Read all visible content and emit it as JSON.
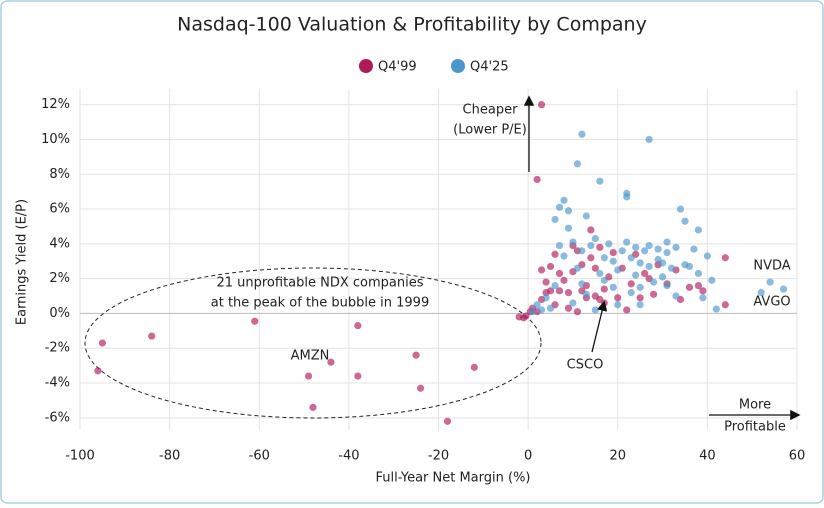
{
  "chart_data": {
    "type": "scatter",
    "title": "Nasdaq-100 Valuation & Profitability by Company",
    "x_label": "Full-Year Net Margin (%)",
    "y_label": "Earnings Yield (E/P)",
    "xlim": [
      -100,
      60
    ],
    "ylim": [
      -6.7,
      12.9
    ],
    "xticks": [
      -100,
      -80,
      -60,
      -40,
      -20,
      0,
      20,
      40,
      60
    ],
    "yticks": [
      {
        "value": -6,
        "label": "-6%"
      },
      {
        "value": -4,
        "label": "-4%"
      },
      {
        "value": -2,
        "label": "-2%"
      },
      {
        "value": 0,
        "label": "0%"
      },
      {
        "value": 2,
        "label": "2%"
      },
      {
        "value": 4,
        "label": "4%"
      },
      {
        "value": 6,
        "label": "6%"
      },
      {
        "value": 8,
        "label": "8%"
      },
      {
        "value": 10,
        "label": "10%"
      },
      {
        "value": 12,
        "label": "12%"
      }
    ],
    "grid": true,
    "annotations": [
      "Cheaper",
      "(Lower P/E)",
      "More",
      "Profitable",
      "21 unprofitable NDX companies",
      "at the peak of the bubble in 1999",
      "AMZN",
      "CSCO",
      "NVDA",
      "AVGO"
    ],
    "series": [
      {
        "name": "Q4'99",
        "color": "#b0185a",
        "x": [
          -96,
          -95,
          -84,
          -61,
          -49,
          -48,
          -44,
          -38,
          -38,
          -25,
          -24,
          -18,
          -12,
          -2,
          -1,
          -0.5,
          0.5,
          1,
          2,
          3,
          4,
          5,
          5,
          6,
          6,
          7,
          7,
          8,
          9,
          9,
          10,
          10,
          11,
          12,
          12,
          13,
          13,
          14,
          14,
          15,
          15,
          16,
          16,
          17,
          17,
          18,
          19,
          20,
          21,
          22,
          23,
          24,
          25,
          26,
          27,
          28,
          29,
          31,
          33,
          34,
          36,
          38,
          39,
          44,
          44,
          2,
          3,
          3,
          11,
          4
        ],
        "values": [
          -3.3,
          -1.7,
          -1.3,
          -0.45,
          -3.6,
          -5.4,
          -2.8,
          -0.7,
          -3.6,
          -2.4,
          -4.3,
          -6.2,
          -3.1,
          -0.2,
          -0.25,
          -0.15,
          0.1,
          0.3,
          0.1,
          0.8,
          1.8,
          1.3,
          2.7,
          3.4,
          0.5,
          1.3,
          2.3,
          1.9,
          0.3,
          1.2,
          2.4,
          3.9,
          3.6,
          1.3,
          2.8,
          1.6,
          0.9,
          3.2,
          4.8,
          1.0,
          2.6,
          0.8,
          3.8,
          1.4,
          0.6,
          2.1,
          3.5,
          0.9,
          2.6,
          0.2,
          1.7,
          3.4,
          0.9,
          2.3,
          2.0,
          1.1,
          2.8,
          1.7,
          2.5,
          0.8,
          1.5,
          1.6,
          1.3,
          3.2,
          0.5,
          7.7,
          12,
          2.5,
          0.1,
          1.2
        ]
      },
      {
        "name": "Q4'25",
        "color": "#4b97cc",
        "x": [
          12,
          27,
          11,
          16,
          22,
          22,
          34,
          8,
          7,
          9,
          6,
          35,
          38,
          54,
          57,
          52,
          42,
          1,
          2,
          3,
          4,
          5,
          6,
          7,
          8,
          9,
          10,
          11,
          12,
          13,
          13,
          14,
          15,
          16,
          17,
          17,
          18,
          19,
          19,
          20,
          20,
          21,
          22,
          23,
          23,
          24,
          24,
          25,
          25,
          26,
          27,
          27,
          28,
          29,
          29,
          30,
          30,
          31,
          31,
          32,
          33,
          33,
          35,
          36,
          37,
          38,
          40,
          39,
          41,
          12,
          10,
          15,
          25,
          31
        ],
        "values": [
          10.3,
          10,
          8.6,
          7.6,
          6.9,
          6.7,
          6,
          6.5,
          6.1,
          5.9,
          5.4,
          5.3,
          4.8,
          1.8,
          1.4,
          1.2,
          0.25,
          0.1,
          0.5,
          0.2,
          0.9,
          0.3,
          1.6,
          3.9,
          3.3,
          4.9,
          4.1,
          2.6,
          3.6,
          1.1,
          5.6,
          3.9,
          4.3,
          2.3,
          1.9,
          3.2,
          4.0,
          1.5,
          3.0,
          0.5,
          2.5,
          3.6,
          4.1,
          1.2,
          3.2,
          2.2,
          3.8,
          2.9,
          1.5,
          3.6,
          2.7,
          3.9,
          1.8,
          3.1,
          3.7,
          2.1,
          2.9,
          3.5,
          1.6,
          2.6,
          3.8,
          1.0,
          2.8,
          2.7,
          3.7,
          2.3,
          3.3,
          0.9,
          1.9,
          1.7,
          0.6,
          0.2,
          0.5,
          4.1
        ]
      }
    ]
  }
}
